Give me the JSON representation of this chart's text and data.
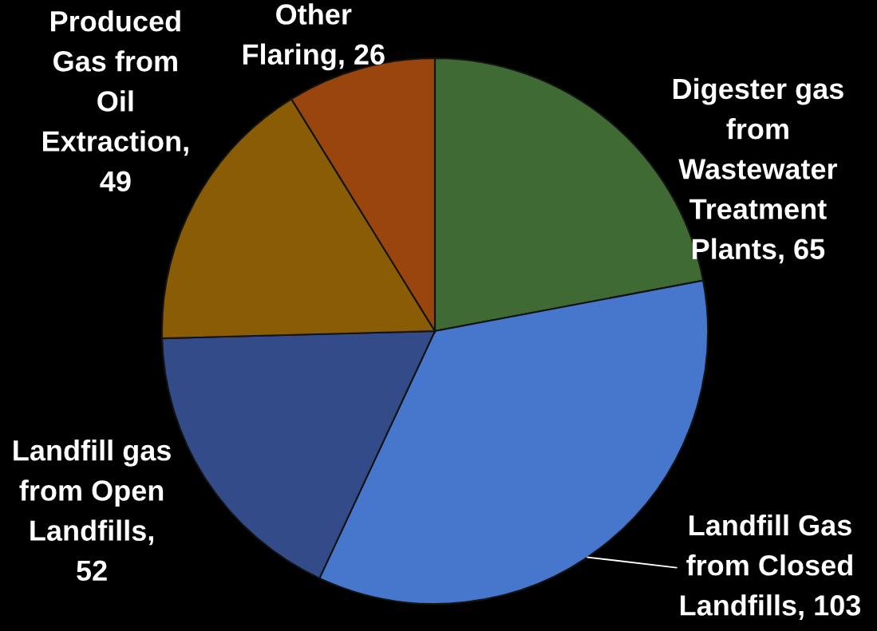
{
  "chart_data": {
    "type": "pie",
    "categories": [
      "Digester gas from Wastewater Treatment Plants",
      "Landfill Gas from Closed Landfills",
      "Landfill gas from Open Landfills",
      "Produced Gas from Oil Extraction",
      "Other Flaring"
    ],
    "values": [
      65,
      103,
      52,
      49,
      26
    ],
    "value_labels": [
      ", 65",
      ", 103",
      ", 52",
      ", 49",
      ", 26"
    ],
    "colors": [
      "#406a33",
      "#4677cd",
      "#344b8a",
      "#8a5c05",
      "#9a440e"
    ]
  }
}
